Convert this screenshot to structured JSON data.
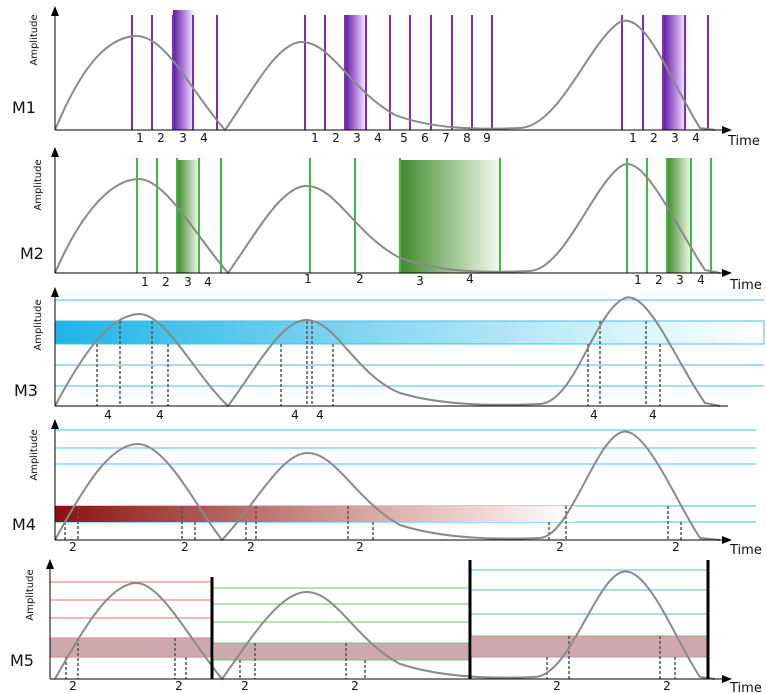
{
  "axis_labels": {
    "y": "Amplitude",
    "x": "Time"
  },
  "panels": [
    {
      "id": "M1",
      "label": "M1",
      "ticks_a": [
        "1",
        "2",
        "3",
        "4"
      ],
      "ticks_b": [
        "1",
        "2",
        "3",
        "4",
        "5",
        "6",
        "7",
        "8",
        "9"
      ],
      "ticks_c": [
        "1",
        "2",
        "3",
        "4"
      ],
      "color": "#7b2cbf"
    },
    {
      "id": "M2",
      "label": "M2",
      "ticks_a": [
        "1",
        "2",
        "3",
        "4"
      ],
      "ticks_b": [
        "1",
        "2",
        "3",
        "4"
      ],
      "ticks_c": [
        "1",
        "2",
        "3",
        "4"
      ],
      "color": "#2e9e2e"
    },
    {
      "id": "M3",
      "label": "M3",
      "ticks": [
        "4",
        "4",
        "4",
        "4",
        "4",
        "4"
      ],
      "color": "#2bb8e0"
    },
    {
      "id": "M4",
      "label": "M4",
      "ticks": [
        "2",
        "2",
        "2",
        "2",
        "2",
        "2"
      ],
      "color": "#8b1a1a"
    },
    {
      "id": "M5",
      "label": "M5",
      "ticks": [
        "2",
        "2",
        "2",
        "2",
        "2",
        "2"
      ],
      "colors": {
        "left": "#e07070",
        "middle": "#6cc46c",
        "right": "#5ab4e0",
        "band": "#c49aa0"
      }
    }
  ]
}
